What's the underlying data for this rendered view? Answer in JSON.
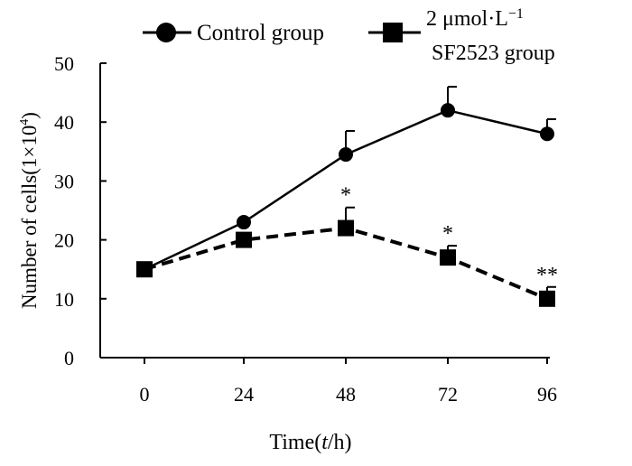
{
  "chart_data": {
    "type": "line",
    "title": "",
    "xlabel_prefix": "Time(",
    "xlabel_var": "t",
    "xlabel_suffix": "/h)",
    "ylabel_main": "Number of cells(1×10",
    "ylabel_sup": "4",
    "ylabel_close": ")",
    "x": [
      0,
      24,
      48,
      72,
      96
    ],
    "x_tick_labels": [
      "0",
      "24",
      "48",
      "72",
      "96"
    ],
    "ylim": [
      0,
      50
    ],
    "y_ticks": [
      0,
      10,
      20,
      30,
      40,
      50
    ],
    "y_tick_labels": [
      "0",
      "10",
      "20",
      "30",
      "40",
      "50"
    ],
    "legend": {
      "position": "top",
      "entries": [
        {
          "label_line1": "Control group",
          "label_line2": ""
        },
        {
          "label_line1": "2 μmol·L",
          "label_sup": "−1",
          "label_line2": "SF2523 group"
        }
      ]
    },
    "series": [
      {
        "name": "Control group",
        "marker": "circle",
        "line_style": "solid",
        "color": "#000000",
        "values": [
          15,
          23,
          34.5,
          42,
          38
        ],
        "errors": [
          0,
          0,
          4,
          4,
          2.5
        ]
      },
      {
        "name": "2 μmol·L−1 SF2523 group",
        "marker": "square",
        "line_style": "dashed",
        "color": "#000000",
        "values": [
          15,
          20,
          22,
          17,
          10
        ],
        "errors": [
          0,
          0,
          3.5,
          2,
          2
        ],
        "significance": [
          "",
          "",
          "*",
          "*",
          "**"
        ]
      }
    ]
  }
}
